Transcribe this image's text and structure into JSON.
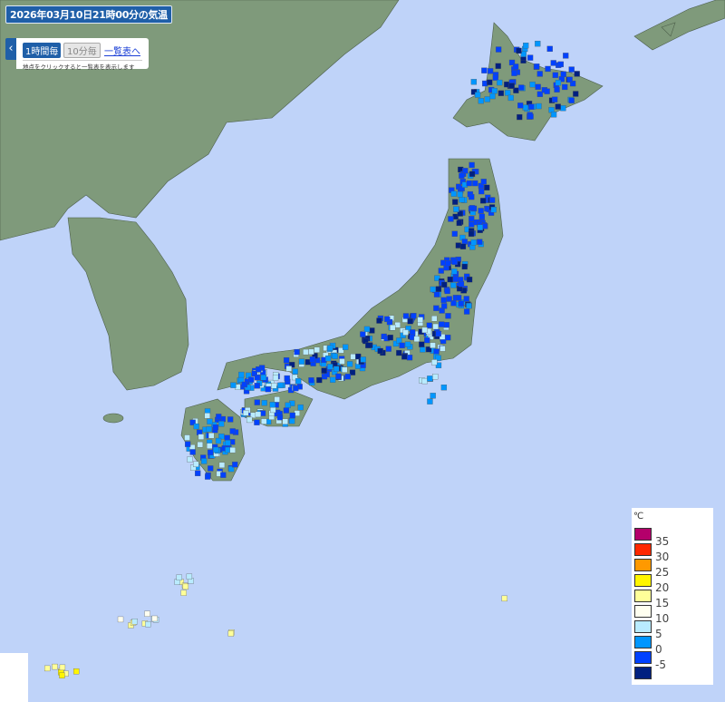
{
  "title": "2026年03月10日21時00分の気温",
  "controls": {
    "toggle_icon": "chevron-left-icon",
    "hourly_label": "1時間毎",
    "ten_min_label": "10分毎",
    "list_link": "一覧表へ",
    "hint": "地点をクリックすると一覧表を表示します"
  },
  "colors": {
    "sea": "#bfd3f9",
    "land": "#7f9a7b"
  },
  "legend": {
    "unit": "℃",
    "items": [
      {
        "label": "35",
        "color": "#b4006b"
      },
      {
        "label": "30",
        "color": "#ff2800"
      },
      {
        "label": "25",
        "color": "#ff9900"
      },
      {
        "label": "20",
        "color": "#fff500"
      },
      {
        "label": "15",
        "color": "#ffff99"
      },
      {
        "label": "10",
        "color": "#fffff0"
      },
      {
        "label": "5",
        "color": "#b9ebff"
      },
      {
        "label": "0",
        "color": "#0096ff"
      },
      {
        "label": "-5",
        "color": "#0041ff"
      },
      {
        "label": "",
        "color": "#002080"
      }
    ]
  }
}
